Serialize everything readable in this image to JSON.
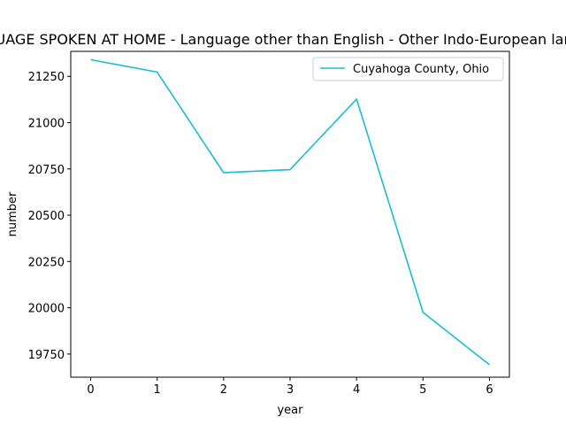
{
  "chart_data": {
    "type": "line",
    "title": "LANGUAGE SPOKEN AT HOME - Language other than English - Other Indo-European languages",
    "xlabel": "year",
    "ylabel": "number",
    "x": [
      0,
      1,
      2,
      3,
      4,
      5,
      6
    ],
    "xticks": [
      "0",
      "1",
      "2",
      "3",
      "4",
      "5",
      "6"
    ],
    "yticks": [
      19750,
      20000,
      20250,
      20500,
      20750,
      21000,
      21250
    ],
    "xlim": [
      -0.3,
      6.3
    ],
    "ylim": [
      19625,
      21385
    ],
    "grid": false,
    "legend_position": "top-right",
    "series": [
      {
        "name": "Cuyahoga County, Ohio",
        "color": "#17becf",
        "values": [
          21340,
          21273,
          20730,
          20746,
          21127,
          19975,
          19692
        ]
      }
    ]
  }
}
